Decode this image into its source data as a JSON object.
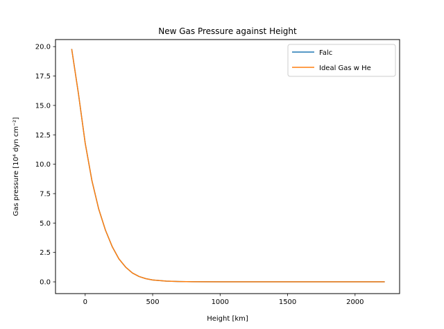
{
  "chart_data": {
    "type": "line",
    "title": "New Gas Pressure against Height",
    "xlabel": "Height [km]",
    "ylabel": "Gas pressure [10⁴ dyn cm⁻²]",
    "xlim": [
      -220,
      2330
    ],
    "ylim": [
      -1.0,
      20.6
    ],
    "xticks": [
      0,
      500,
      1000,
      1500,
      2000
    ],
    "yticks": [
      0.0,
      2.5,
      5.0,
      7.5,
      10.0,
      12.5,
      15.0,
      17.5,
      20.0
    ],
    "xtick_labels": [
      "0",
      "500",
      "1000",
      "1500",
      "2000"
    ],
    "ytick_labels": [
      "0.0",
      "2.5",
      "5.0",
      "7.5",
      "10.0",
      "12.5",
      "15.0",
      "17.5",
      "20.0"
    ],
    "grid": false,
    "legend_position": "top-right",
    "series": [
      {
        "name": "Falc",
        "color": "#1f77b4",
        "x": [
          -100,
          -50,
          0,
          50,
          100,
          150,
          200,
          250,
          300,
          350,
          400,
          450,
          500,
          600,
          700,
          800,
          1000,
          1500,
          2000,
          2220
        ],
        "y": [
          19.8,
          16.0,
          11.8,
          8.6,
          6.2,
          4.4,
          3.0,
          1.95,
          1.25,
          0.75,
          0.45,
          0.27,
          0.16,
          0.06,
          0.025,
          0.012,
          0.005,
          0.002,
          0.001,
          0.001
        ]
      },
      {
        "name": "Ideal Gas w He",
        "color": "#ff7f0e",
        "x": [
          -100,
          -50,
          0,
          50,
          100,
          150,
          200,
          250,
          300,
          350,
          400,
          450,
          500,
          600,
          700,
          800,
          1000,
          1500,
          2000,
          2220
        ],
        "y": [
          19.8,
          16.0,
          11.8,
          8.6,
          6.2,
          4.4,
          3.0,
          1.95,
          1.25,
          0.75,
          0.45,
          0.27,
          0.16,
          0.06,
          0.025,
          0.012,
          0.005,
          0.002,
          0.001,
          0.001
        ]
      }
    ]
  }
}
